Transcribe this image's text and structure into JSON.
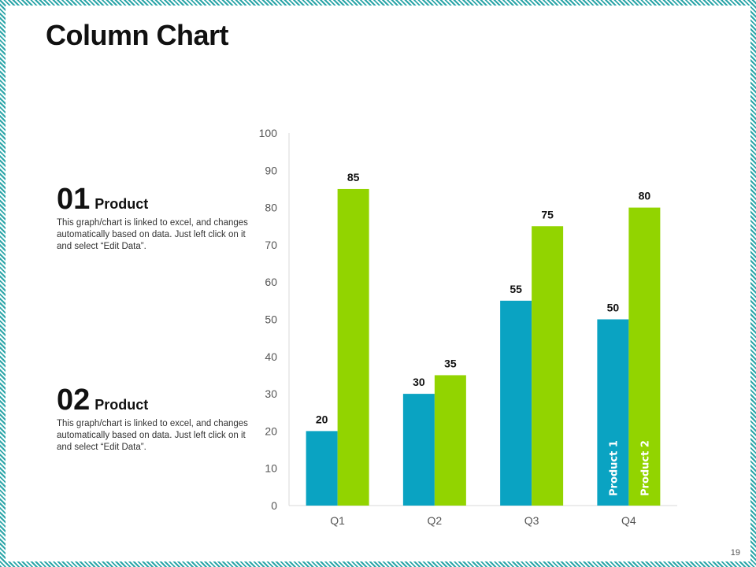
{
  "page": {
    "title": "Column Chart",
    "page_number": "19"
  },
  "legend_blocks": [
    {
      "number": "01",
      "label": "Product",
      "description": "This graph/chart is linked to excel, and changes automatically based on data. Just left click on it and select “Edit Data”."
    },
    {
      "number": "02",
      "label": "Product",
      "description": "This graph/chart is linked to excel, and changes automatically based on data. Just left click on it and select “Edit Data”."
    }
  ],
  "colors": {
    "product1": "#0aa3c2",
    "product2": "#92d400",
    "frame": "#2ba5a8"
  },
  "chart_data": {
    "type": "bar",
    "title": "Column Chart",
    "categories": [
      "Q1",
      "Q2",
      "Q3",
      "Q4"
    ],
    "series": [
      {
        "name": "Product 1",
        "values": [
          20,
          30,
          55,
          50
        ]
      },
      {
        "name": "Product 2",
        "values": [
          85,
          35,
          75,
          80
        ]
      }
    ],
    "yticks": [
      0,
      10,
      20,
      30,
      40,
      50,
      60,
      70,
      80,
      90,
      100
    ],
    "ylim": [
      0,
      100
    ],
    "xlabel": "",
    "ylabel": "",
    "grid": false,
    "data_labels": true,
    "series_labels_inside_last_group": true
  }
}
